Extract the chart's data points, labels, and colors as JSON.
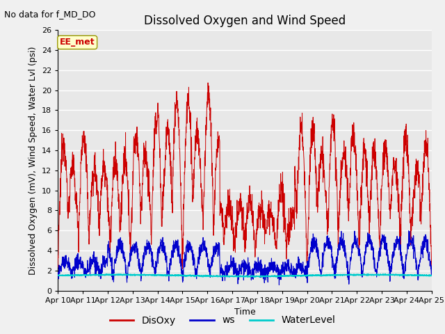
{
  "title": "Dissolved Oxygen and Wind Speed",
  "no_data_text": "No data for f_MD_DO",
  "label_text": "EE_met",
  "ylabel": "Dissolved Oxygen (mV), Wind Speed, Water Lvl (psi)",
  "xlabel": "Time",
  "ylim": [
    0,
    26
  ],
  "yticks": [
    0,
    2,
    4,
    6,
    8,
    10,
    12,
    14,
    16,
    18,
    20,
    22,
    24,
    26
  ],
  "xtick_labels": [
    "Apr 10",
    "Apr 11",
    "Apr 12",
    "Apr 13",
    "Apr 14",
    "Apr 15",
    "Apr 16",
    "Apr 17",
    "Apr 18",
    "Apr 19",
    "Apr 20",
    "Apr 21",
    "Apr 22",
    "Apr 23",
    "Apr 24",
    "Apr 25"
  ],
  "disoxy_color": "#cc0000",
  "ws_color": "#0000cc",
  "waterlevel_color": "#00cccc",
  "fig_facecolor": "#f0f0f0",
  "plot_bg_color": "#e8e8e8",
  "legend_labels": [
    "DisOxy",
    "ws",
    "WaterLevel"
  ],
  "title_fontsize": 12,
  "axis_label_fontsize": 9,
  "tick_fontsize": 8,
  "legend_fontsize": 10,
  "annot_fontsize": 9,
  "no_data_fontsize": 9,
  "linewidth_disoxy": 0.7,
  "linewidth_ws": 0.8,
  "linewidth_wl": 1.2
}
